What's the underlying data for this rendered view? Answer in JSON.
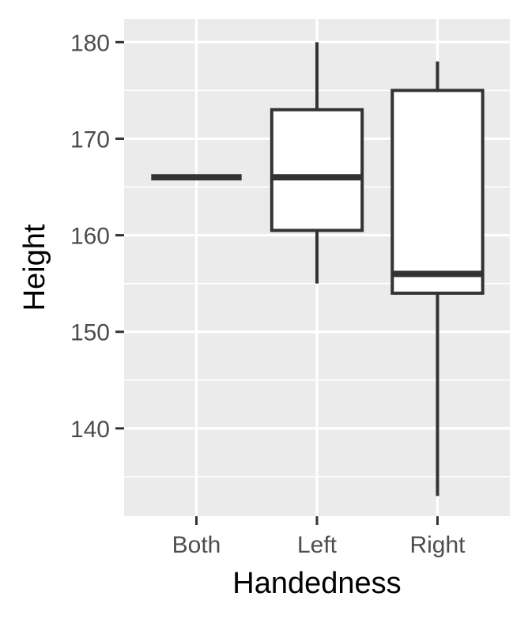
{
  "chart_data": {
    "type": "boxplot",
    "title": "",
    "xlabel": "Handedness",
    "ylabel": "Height",
    "categories": [
      "Both",
      "Left",
      "Right"
    ],
    "boxes": [
      {
        "category": "Both",
        "whisker_low": 166,
        "q1": 166,
        "median": 166,
        "q3": 166,
        "whisker_high": 166
      },
      {
        "category": "Left",
        "whisker_low": 155,
        "q1": 160.5,
        "median": 166,
        "q3": 173,
        "whisker_high": 180
      },
      {
        "category": "Right",
        "whisker_low": 133,
        "q1": 154,
        "median": 156,
        "q3": 175,
        "whisker_high": 178
      }
    ],
    "yticks": [
      140,
      150,
      160,
      170,
      180
    ],
    "ylim": [
      130.9,
      182.4
    ],
    "grid": true,
    "legend": "none",
    "colors": {
      "panel": "#ebebeb",
      "grid": "#ffffff",
      "box_fill": "#ffffff",
      "box_line": "#333333",
      "tick_text": "#4d4d4d",
      "axis_title": "#000000"
    }
  }
}
